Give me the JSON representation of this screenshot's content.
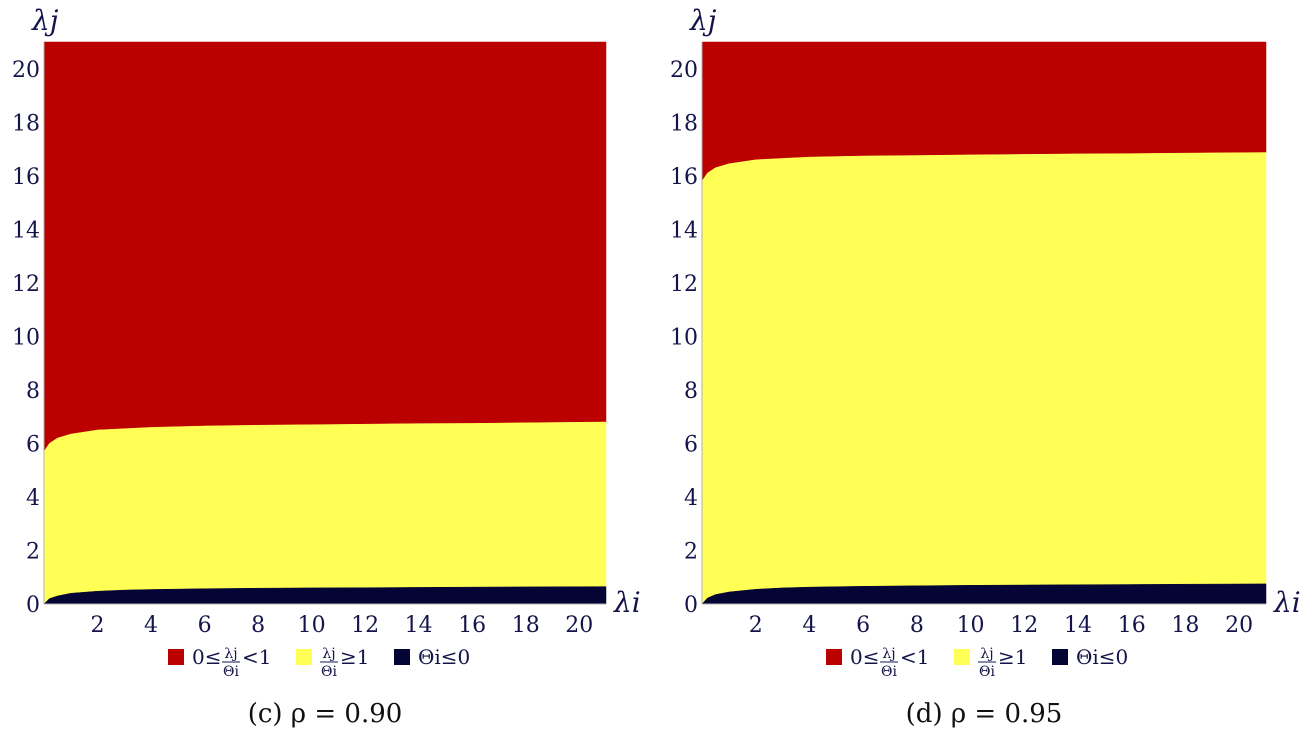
{
  "chart_data": [
    {
      "type": "area",
      "caption": "(c) ρ = 0.90",
      "xlabel": "λi",
      "ylabel": "λj",
      "xlim": [
        0,
        21
      ],
      "ylim": [
        0,
        21
      ],
      "xticks": [
        2,
        4,
        6,
        8,
        10,
        12,
        14,
        16,
        18,
        20
      ],
      "yticks": [
        0,
        2,
        4,
        6,
        8,
        10,
        12,
        14,
        16,
        18,
        20
      ],
      "regions": [
        {
          "name": "0≤λj/Θi<1",
          "color": "#bb0000",
          "lower": "upper_boundary",
          "upper": 21
        },
        {
          "name": "λj/Θi≥1",
          "color": "#ffff55",
          "lower": "lower_boundary",
          "upper": "upper_boundary"
        },
        {
          "name": "Θi≤0",
          "color": "#050535",
          "lower": 0,
          "upper": "lower_boundary"
        }
      ],
      "upper_boundary": {
        "x": [
          0,
          0.2,
          0.5,
          1,
          2,
          3,
          4,
          6,
          8,
          10,
          12,
          14,
          16,
          18,
          21
        ],
        "y": [
          5.7,
          6.0,
          6.2,
          6.35,
          6.5,
          6.55,
          6.6,
          6.65,
          6.68,
          6.7,
          6.72,
          6.74,
          6.75,
          6.77,
          6.8
        ]
      },
      "lower_boundary": {
        "x": [
          0,
          0.2,
          0.5,
          1,
          2,
          3,
          4,
          6,
          8,
          10,
          12,
          14,
          16,
          18,
          21
        ],
        "y": [
          0,
          0.2,
          0.3,
          0.4,
          0.48,
          0.52,
          0.54,
          0.57,
          0.59,
          0.6,
          0.61,
          0.62,
          0.63,
          0.64,
          0.65
        ]
      },
      "legend_position": "bottom"
    },
    {
      "type": "area",
      "caption": "(d) ρ = 0.95",
      "xlabel": "λi",
      "ylabel": "λj",
      "xlim": [
        0,
        21
      ],
      "ylim": [
        0,
        21
      ],
      "xticks": [
        2,
        4,
        6,
        8,
        10,
        12,
        14,
        16,
        18,
        20
      ],
      "yticks": [
        0,
        2,
        4,
        6,
        8,
        10,
        12,
        14,
        16,
        18,
        20
      ],
      "regions": [
        {
          "name": "0≤λj/Θi<1",
          "color": "#bb0000",
          "lower": "upper_boundary",
          "upper": 21
        },
        {
          "name": "λj/Θi≥1",
          "color": "#ffff55",
          "lower": "lower_boundary",
          "upper": "upper_boundary"
        },
        {
          "name": "Θi≤0",
          "color": "#050535",
          "lower": 0,
          "upper": "lower_boundary"
        }
      ],
      "upper_boundary": {
        "x": [
          0,
          0.2,
          0.5,
          1,
          2,
          3,
          4,
          6,
          8,
          10,
          12,
          14,
          16,
          18,
          21
        ],
        "y": [
          15.8,
          16.1,
          16.3,
          16.45,
          16.6,
          16.65,
          16.7,
          16.74,
          16.76,
          16.78,
          16.8,
          16.82,
          16.83,
          16.85,
          16.87
        ]
      },
      "lower_boundary": {
        "x": [
          0,
          0.2,
          0.5,
          1,
          2,
          3,
          4,
          6,
          8,
          10,
          12,
          14,
          16,
          18,
          21
        ],
        "y": [
          0,
          0.22,
          0.35,
          0.45,
          0.55,
          0.6,
          0.63,
          0.66,
          0.68,
          0.7,
          0.71,
          0.72,
          0.73,
          0.74,
          0.75
        ]
      },
      "legend_position": "bottom"
    }
  ],
  "legend": {
    "items": [
      {
        "prefix": "0≤",
        "num": "λj",
        "den": "Θi",
        "suffix": "<1",
        "color": "#bb0000"
      },
      {
        "prefix": "",
        "num": "λj",
        "den": "Θi",
        "suffix": "≥1",
        "color": "#ffff55"
      },
      {
        "prefix": "",
        "num": "",
        "den": "",
        "suffix": "Θi≤0",
        "color": "#050535"
      }
    ]
  }
}
